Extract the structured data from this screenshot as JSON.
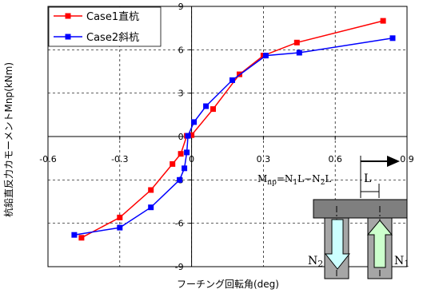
{
  "chart_data": {
    "type": "line",
    "xlabel": "フーチング回転角(deg)",
    "ylabel": "杭鉛直反力カモーメントMnp(kNm)",
    "xlim": [
      -0.6,
      0.9
    ],
    "ylim": [
      -9,
      9
    ],
    "x_ticks": [
      "-0.6",
      "-0.3",
      "0",
      "0.3",
      "0.6",
      "0.9"
    ],
    "y_ticks": [
      "9",
      "6",
      "3",
      "0",
      "-3",
      "-6",
      "-9"
    ],
    "grid": true,
    "legend_position": "top-left",
    "series": [
      {
        "name": "Case1直杭",
        "color": "#ff0000",
        "marker": "square",
        "x": [
          -0.46,
          -0.3,
          -0.17,
          -0.08,
          -0.045,
          -0.02,
          0.0,
          0.09,
          0.2,
          0.3,
          0.44,
          0.8
        ],
        "y": [
          -7.0,
          -5.6,
          -3.7,
          -1.9,
          -1.2,
          0.05,
          0.1,
          1.9,
          4.3,
          5.6,
          6.5,
          8.0
        ]
      },
      {
        "name": "Case2斜杭",
        "color": "#0000ff",
        "marker": "square",
        "x": [
          -0.49,
          -0.3,
          -0.17,
          -0.05,
          -0.03,
          -0.02,
          -0.015,
          0.01,
          0.06,
          0.17,
          0.31,
          0.45,
          0.84
        ],
        "y": [
          -6.8,
          -6.3,
          -4.9,
          -3.0,
          -2.2,
          -1.1,
          0.05,
          1.0,
          2.1,
          3.9,
          5.6,
          5.8,
          6.8
        ]
      }
    ],
    "annotation": {
      "formula": "Mnp=N1L−N2L",
      "length_label": "L",
      "n2_label": "N2",
      "n1_label": "N1"
    }
  }
}
